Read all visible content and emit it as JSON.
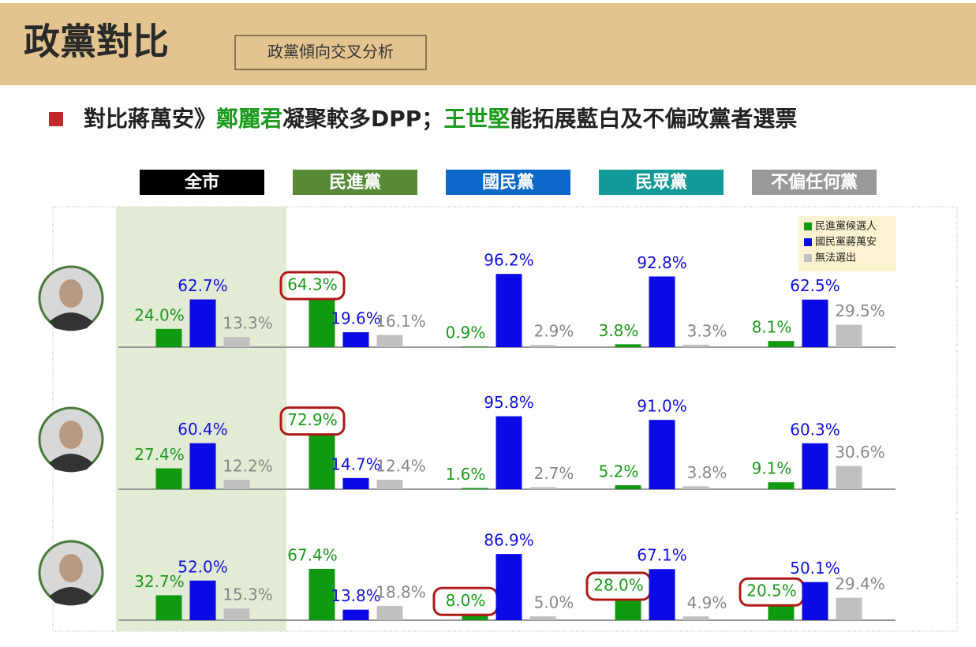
{
  "header": {
    "title": "政黨對比",
    "tag": "政黨傾向交叉分析"
  },
  "subtitle": [
    {
      "text": "對比蔣萬安》",
      "color": "#222222"
    },
    {
      "text": "鄭麗君",
      "color": "#1a9a1a"
    },
    {
      "text": "凝聚較多DPP；",
      "color": "#222222"
    },
    {
      "text": "王世堅",
      "color": "#1a9a1a"
    },
    {
      "text": "能拓展藍白及不偏政黨者選票",
      "color": "#222222"
    }
  ],
  "chart_data": {
    "type": "bar",
    "categories": [
      "全市",
      "民進黨",
      "國民黨",
      "民眾黨",
      "不偏任何黨"
    ],
    "category_colors": [
      "#000000",
      "#568a36",
      "#0a68c8",
      "#129a98",
      "#999999"
    ],
    "legend": [
      {
        "name": "民進黨候選人",
        "color": "#0f9a0f",
        "label_color": "#1a9a1a"
      },
      {
        "name": "國民黨蔣萬安",
        "color": "#0a0ae6",
        "label_color": "#1010e0"
      },
      {
        "name": "無法選出",
        "color": "#c0c0c0",
        "label_color": "#888888"
      }
    ],
    "ylim": [
      0,
      100
    ],
    "panels": [
      {
        "series": [
          {
            "values": [
              24.0,
              64.3,
              0.9,
              3.8,
              8.1
            ],
            "value_labels": [
              "24.0%",
              "64.3%",
              "0.9%",
              "3.8%",
              "8.1%"
            ],
            "circled": [
              false,
              true,
              false,
              false,
              false
            ]
          },
          {
            "values": [
              62.7,
              19.6,
              96.2,
              92.8,
              62.5
            ],
            "value_labels": [
              "62.7%",
              "19.6%",
              "96.2%",
              "92.8%",
              "62.5%"
            ]
          },
          {
            "values": [
              13.3,
              16.1,
              2.9,
              3.3,
              29.5
            ],
            "value_labels": [
              "13.3%",
              "16.1%",
              "2.9%",
              "3.3%",
              "29.5%"
            ]
          }
        ]
      },
      {
        "series": [
          {
            "values": [
              27.4,
              72.9,
              1.6,
              5.2,
              9.1
            ],
            "value_labels": [
              "27.4%",
              "72.9%",
              "1.6%",
              "5.2%",
              "9.1%"
            ],
            "circled": [
              false,
              true,
              false,
              false,
              false
            ]
          },
          {
            "values": [
              60.4,
              14.7,
              95.8,
              91.0,
              60.3
            ],
            "value_labels": [
              "60.4%",
              "14.7%",
              "95.8%",
              "91.0%",
              "60.3%"
            ]
          },
          {
            "values": [
              12.2,
              12.4,
              2.7,
              3.8,
              30.6
            ],
            "value_labels": [
              "12.2%",
              "12.4%",
              "2.7%",
              "3.8%",
              "30.6%"
            ]
          }
        ]
      },
      {
        "series": [
          {
            "values": [
              32.7,
              67.4,
              8.0,
              28.0,
              20.5
            ],
            "value_labels": [
              "32.7%",
              "67.4%",
              "8.0%",
              "28.0%",
              "20.5%"
            ],
            "circled": [
              false,
              false,
              true,
              true,
              true
            ]
          },
          {
            "values": [
              52.0,
              13.8,
              86.9,
              67.1,
              50.1
            ],
            "value_labels": [
              "52.0%",
              "13.8%",
              "86.9%",
              "67.1%",
              "50.1%"
            ]
          },
          {
            "values": [
              15.3,
              18.8,
              5.0,
              4.9,
              29.4
            ],
            "value_labels": [
              "15.3%",
              "18.8%",
              "5.0%",
              "4.9%",
              "29.4%"
            ]
          }
        ]
      }
    ]
  }
}
